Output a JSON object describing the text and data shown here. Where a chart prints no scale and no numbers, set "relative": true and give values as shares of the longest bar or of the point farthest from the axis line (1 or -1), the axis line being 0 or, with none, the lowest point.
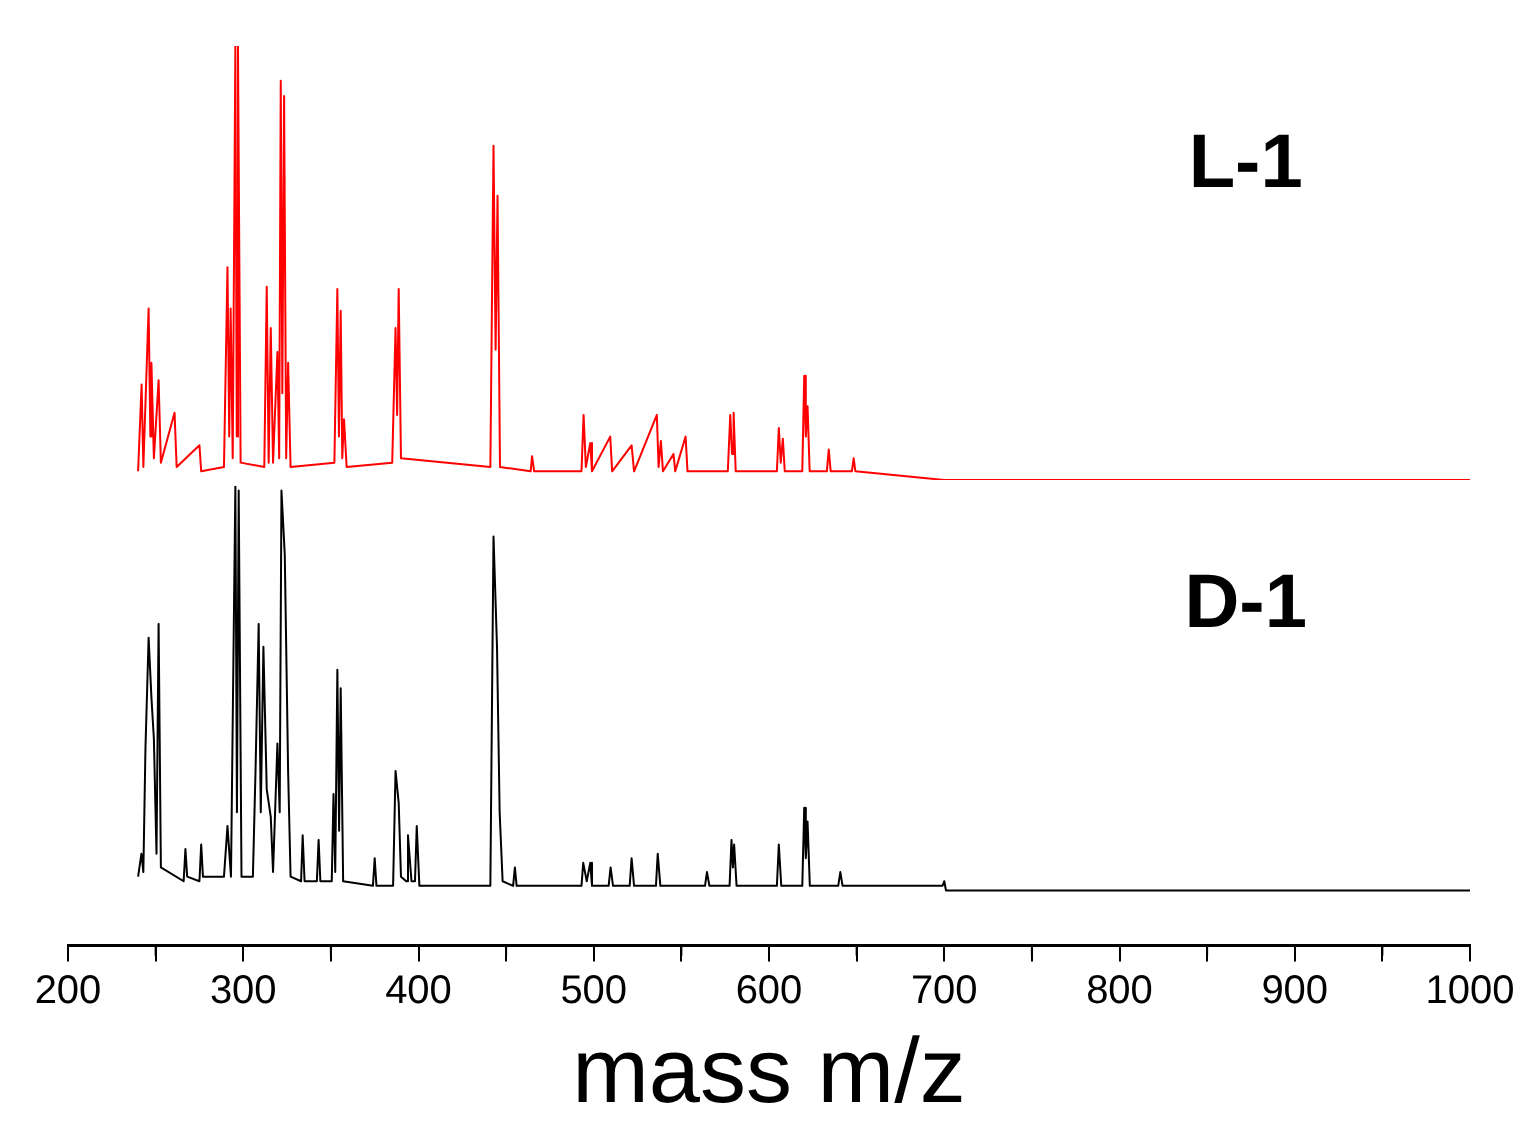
{
  "chart_data": [
    {
      "type": "line",
      "relative": true,
      "xlim": [
        200,
        1000
      ],
      "tick_labels": false,
      "grid": false,
      "legend": false,
      "marker": "none",
      "series": [
        {
          "name": "L-1",
          "color": "#ff0000",
          "x": [
            240,
            242,
            243,
            246,
            247,
            247.6,
            249,
            251.7,
            253,
            260.8,
            262,
            275,
            276,
            289,
            291,
            292,
            292.8,
            294,
            295.5,
            296.3,
            297,
            298.5,
            312,
            313.4,
            314.5,
            315.7,
            317,
            319.5,
            320.5,
            321.4,
            322.3,
            323.3,
            324.5,
            325.6,
            327,
            352,
            353.7,
            354.6,
            355.6,
            356.5,
            357.5,
            359,
            385,
            386.9,
            387.8,
            388.7,
            390,
            441,
            442.8,
            444,
            445.1,
            446.5,
            464,
            464.8,
            466,
            493,
            494.2,
            495.5,
            498,
            499,
            509.4,
            510.5,
            521.6,
            523,
            536,
            537,
            538.3,
            539.5,
            545.5,
            546.5,
            552.4,
            553.5,
            576.5,
            577.9,
            578.9,
            579.8,
            581,
            604.5,
            605.6,
            606.7,
            607.9,
            609,
            619,
            620.1,
            621,
            622,
            623.2,
            633,
            634.1,
            635.2,
            647.3,
            648.3,
            649.3,
            700,
            800,
            900,
            1000
          ],
          "values": [
            0.02,
            0.22,
            0.03,
            0.395,
            0.1,
            0.27,
            0.05,
            0.23,
            0.04,
            0.155,
            0.03,
            0.08,
            0.02,
            0.03,
            0.49,
            0.1,
            0.395,
            0.05,
            1.0,
            0.1,
            1.0,
            0.04,
            0.03,
            0.445,
            0.04,
            0.35,
            0.04,
            0.295,
            0.05,
            0.92,
            0.2,
            0.885,
            0.05,
            0.27,
            0.03,
            0.04,
            0.44,
            0.1,
            0.39,
            0.05,
            0.14,
            0.03,
            0.04,
            0.35,
            0.15,
            0.44,
            0.05,
            0.03,
            0.77,
            0.3,
            0.655,
            0.03,
            0.02,
            0.055,
            0.02,
            0.02,
            0.15,
            0.03,
            0.085,
            0.02,
            0.1,
            0.02,
            0.08,
            0.02,
            0.15,
            0.03,
            0.09,
            0.02,
            0.06,
            0.02,
            0.1,
            0.02,
            0.02,
            0.15,
            0.06,
            0.155,
            0.02,
            0.02,
            0.12,
            0.04,
            0.095,
            0.02,
            0.02,
            0.24,
            0.1,
            0.17,
            0.02,
            0.02,
            0.07,
            0.02,
            0.02,
            0.05,
            0.02,
            0,
            0,
            0,
            0
          ]
        }
      ]
    },
    {
      "type": "line",
      "relative": true,
      "xlim": [
        200,
        1000
      ],
      "xlabel": "mass m/z",
      "grid": false,
      "legend": false,
      "marker": "none",
      "xticks": [
        200,
        {
          "value": 250,
          "label": null
        },
        300,
        {
          "value": 350,
          "label": null
        },
        400,
        {
          "value": 450,
          "label": null
        },
        500,
        {
          "value": 550,
          "label": null
        },
        600,
        {
          "value": 650,
          "label": null
        },
        700,
        {
          "value": 750,
          "label": null
        },
        800,
        {
          "value": 850,
          "label": null
        },
        900,
        {
          "value": 950,
          "label": null
        },
        1000
      ],
      "series": [
        {
          "name": "D-1",
          "color": "#000000",
          "x": [
            240,
            241.9,
            243,
            244.2,
            246,
            247.6,
            249,
            250.5,
            251.7,
            253,
            266,
            267,
            268,
            275,
            276,
            277,
            289,
            291,
            293,
            295.5,
            296.4,
            297.4,
            299,
            305.5,
            307,
            308.8,
            310,
            311.5,
            313.4,
            315.7,
            317,
            319.5,
            320.8,
            321.8,
            323.7,
            325.6,
            327,
            333,
            333.9,
            335,
            342,
            343,
            344,
            350.5,
            351.5,
            352.5,
            353.7,
            354.7,
            355.6,
            357,
            374,
            375,
            376,
            385.5,
            386.9,
            388.7,
            390,
            393,
            394,
            396,
            398,
            399,
            400.5,
            441,
            442.8,
            444.8,
            446.3,
            448,
            454,
            455,
            456,
            493,
            494,
            496,
            498,
            499,
            508.5,
            509.6,
            511,
            520.5,
            521.6,
            523,
            535.5,
            536.5,
            538,
            563.5,
            564.6,
            566,
            577.5,
            578.6,
            579.4,
            580.1,
            581.5,
            604.5,
            605.6,
            607,
            619,
            620.1,
            621,
            622,
            623.3,
            639.5,
            640.7,
            642,
            699,
            700,
            701,
            800,
            900,
            1000
          ],
          "values": [
            0.15,
            0.2,
            0.16,
            0.43,
            0.67,
            0.54,
            0.45,
            0.2,
            0.7,
            0.17,
            0.14,
            0.21,
            0.15,
            0.14,
            0.22,
            0.15,
            0.15,
            0.26,
            0.15,
            1,
            0.29,
            0.99,
            0.15,
            0.15,
            0.38,
            0.7,
            0.29,
            0.65,
            0.34,
            0.28,
            0.16,
            0.44,
            0.29,
            0.99,
            0.85,
            0.38,
            0.15,
            0.14,
            0.24,
            0.14,
            0.14,
            0.23,
            0.14,
            0.14,
            0.33,
            0.16,
            0.6,
            0.25,
            0.56,
            0.14,
            0.13,
            0.19,
            0.13,
            0.13,
            0.38,
            0.31,
            0.15,
            0.14,
            0.24,
            0.14,
            0.14,
            0.26,
            0.13,
            0.13,
            0.89,
            0.65,
            0.29,
            0.14,
            0.13,
            0.17,
            0.13,
            0.13,
            0.18,
            0.14,
            0.18,
            0.13,
            0.13,
            0.17,
            0.13,
            0.13,
            0.19,
            0.13,
            0.13,
            0.2,
            0.13,
            0.13,
            0.16,
            0.13,
            0.13,
            0.23,
            0.17,
            0.22,
            0.13,
            0.13,
            0.22,
            0.13,
            0.13,
            0.3,
            0.19,
            0.27,
            0.13,
            0.13,
            0.16,
            0.13,
            0.13,
            0.14,
            0.12,
            0.12,
            0.12,
            0.12
          ]
        }
      ]
    }
  ]
}
